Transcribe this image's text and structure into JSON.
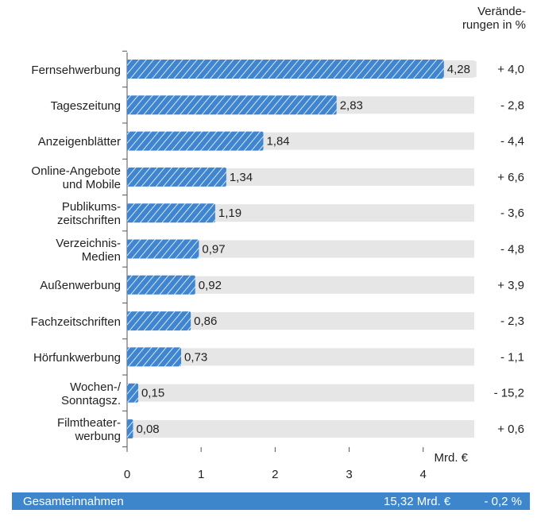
{
  "chart_data": {
    "type": "bar",
    "change_header": "Verände-\nrungen in %",
    "categories": [
      "Fernsehwerbung",
      "Tageszeitung",
      "Anzeigenblätter",
      "Online-Angebote\nund Mobile",
      "Publikums-\nzeitschriften",
      "Verzeichnis-\nMedien",
      "Außenwerbung",
      "Fachzeitschriften",
      "Hörfunkwerbung",
      "Wochen-/\nSonntagsz.",
      "Filmtheater-\nwerbung"
    ],
    "values": [
      4.28,
      2.83,
      1.84,
      1.34,
      1.19,
      0.97,
      0.92,
      0.86,
      0.73,
      0.15,
      0.08
    ],
    "value_labels": [
      "4,28",
      "2,83",
      "1,84",
      "1,34",
      "1,19",
      "0,97",
      "0,92",
      "0,86",
      "0,73",
      "0,15",
      "0,08"
    ],
    "change_labels": [
      "+ 4,0",
      "- 2,8",
      "- 4,4",
      "+ 6,6",
      "- 3,6",
      "- 4,8",
      "+ 3,9",
      "- 2,3",
      "- 1,1",
      "- 15,2",
      "+ 0,6"
    ],
    "color": "#3f85d0",
    "xlabel": "Mrd. €",
    "xlim": [
      0,
      4.69
    ],
    "xticks": [
      0,
      1,
      2,
      3,
      4
    ],
    "total_label": "Gesamteinnahmen",
    "total_value": "15,32 Mrd. €",
    "total_change": "- 0,2 %"
  }
}
